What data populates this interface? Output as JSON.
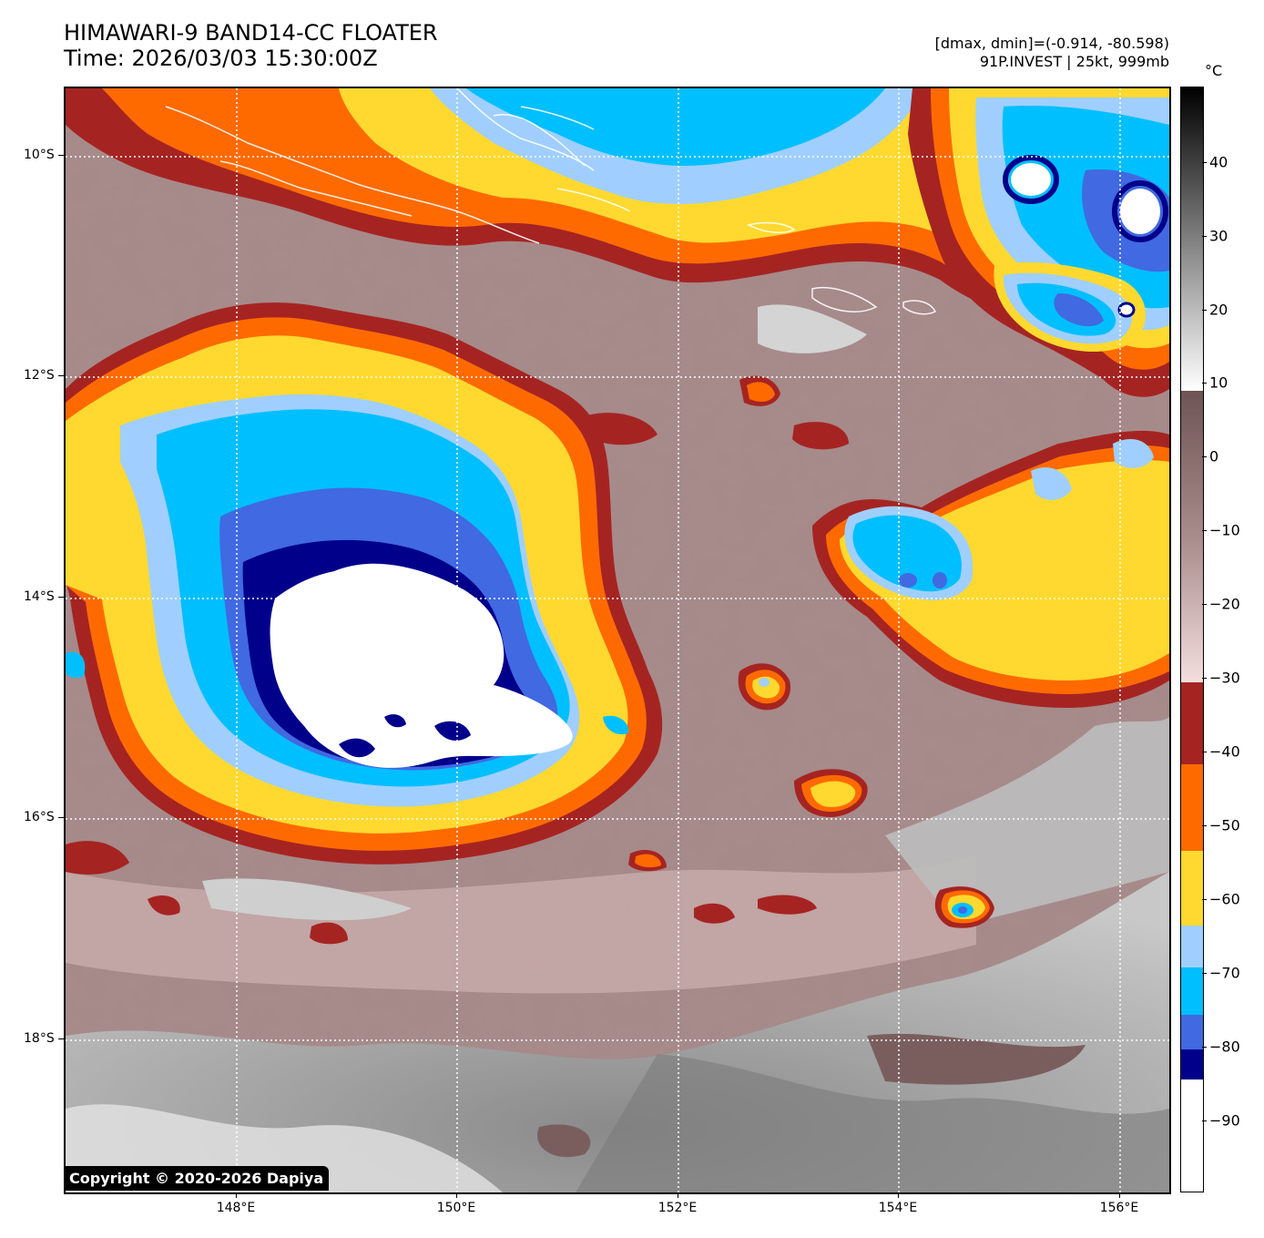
{
  "header": {
    "title_line1": "HIMAWARI-9 BAND14-CC FLOATER",
    "title_line2": "Time: 2026/03/03 15:30:00Z",
    "info_line1": "[dmax, dmin]=(-0.914, -80.598)",
    "info_line2": "91P.INVEST | 25kt, 999mb"
  },
  "map": {
    "lat_labels": [
      "10°S",
      "12°S",
      "14°S",
      "16°S",
      "18°S"
    ],
    "lon_labels": [
      "148°E",
      "150°E",
      "152°E",
      "154°E",
      "156°E"
    ],
    "lat_range_deg_s": [
      9.4,
      19.4
    ],
    "lon_range_deg_e": [
      146.45,
      156.45
    ],
    "copyright": "Copyright © 2020-2026 Dapiya"
  },
  "colorbar": {
    "unit": "°C",
    "tick_labels": [
      "40",
      "30",
      "20",
      "10",
      "0",
      "−10",
      "−20",
      "−30",
      "−40",
      "−50",
      "−60",
      "−70",
      "−80",
      "−90"
    ],
    "range": [
      -100,
      50
    ],
    "colors": {
      "white": "#ffffff",
      "navy": "#00008b",
      "royal_blue": "#4169e1",
      "deep_sky_blue": "#00bfff",
      "light_sky_blue": "#a0cfff",
      "gold": "#ffd92f",
      "dark_orange": "#ff6a00",
      "brown_red": "#a52422",
      "pink_top": "#f7dede",
      "mauve_mid": "#a58787",
      "brown_bottom": "#7a5e5e",
      "gray_light": "#ffffff",
      "black_top": "#000000"
    }
  }
}
